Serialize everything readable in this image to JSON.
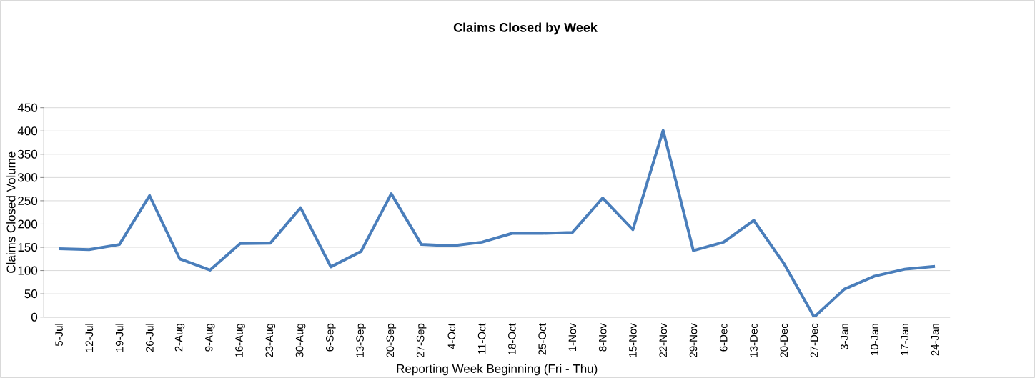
{
  "chart_data": {
    "type": "line",
    "title": "Claims Closed by Week",
    "xlabel": "Reporting Week Beginning (Fri - Thu)",
    "ylabel": "Claims Closed Volume",
    "categories": [
      "5-Jul",
      "12-Jul",
      "19-Jul",
      "26-Jul",
      "2-Aug",
      "9-Aug",
      "16-Aug",
      "23-Aug",
      "30-Aug",
      "6-Sep",
      "13-Sep",
      "20-Sep",
      "27-Sep",
      "4-Oct",
      "11-Oct",
      "18-Oct",
      "25-Oct",
      "1-Nov",
      "8-Nov",
      "15-Nov",
      "22-Nov",
      "29-Nov",
      "6-Dec",
      "13-Dec",
      "20-Dec",
      "27-Dec",
      "3-Jan",
      "10-Jan",
      "17-Jan",
      "24-Jan"
    ],
    "series": [
      {
        "color": "#4a7ebb",
        "values": [
          147,
          145,
          156,
          261,
          125,
          101,
          158,
          159,
          235,
          108,
          141,
          265,
          156,
          153,
          161,
          180,
          180,
          182,
          256,
          188,
          401,
          143,
          161,
          208,
          115,
          0,
          60,
          88,
          103,
          109
        ]
      }
    ],
    "ylim": [
      0,
      450
    ],
    "yticks": [
      0,
      50,
      100,
      150,
      200,
      250,
      300,
      350,
      400,
      450
    ],
    "grid": "y",
    "legend": false,
    "marker": "none",
    "line_style": "solid"
  }
}
